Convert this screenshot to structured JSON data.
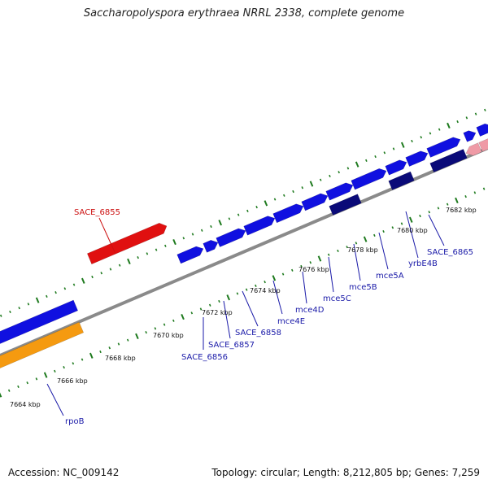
{
  "title": "Saccharopolyspora erythraea NRRL 2338, complete genome",
  "footer": {
    "accession": "Accession: NC_009142",
    "topology": "Topology: circular; Length: 8,212,805 bp; Genes: 7,259"
  },
  "colors": {
    "backbone": "#8a8a8a",
    "tick": "#1e7a1e",
    "forward_gene": "#1010e0",
    "reverse_gene": "#0a0a78",
    "highlight_gene": "#e01010",
    "orange_gene": "#f59a10",
    "pink_gene": "#ef9aa6",
    "label_blue": "#1a1aa8",
    "label_red": "#cc1010"
  },
  "scale_labels": [
    "7664 kbp",
    "7666 kbp",
    "7668 kbp",
    "7670 kbp",
    "7672 kbp",
    "7674 kbp",
    "7676 kbp",
    "7678 kbp",
    "7680 kbp",
    "7682 kbp"
  ],
  "gene_labels": [
    {
      "text": "SACE_6855",
      "color": "red"
    },
    {
      "text": "rpoB",
      "color": "blue"
    },
    {
      "text": "SACE_6856",
      "color": "blue"
    },
    {
      "text": "SACE_6857",
      "color": "blue"
    },
    {
      "text": "SACE_6858",
      "color": "blue"
    },
    {
      "text": "mce4E",
      "color": "blue"
    },
    {
      "text": "mce4D",
      "color": "blue"
    },
    {
      "text": "mce5C",
      "color": "blue"
    },
    {
      "text": "mce5B",
      "color": "blue"
    },
    {
      "text": "mce5A",
      "color": "blue"
    },
    {
      "text": "yrbE4B",
      "color": "blue"
    },
    {
      "text": "SACE_6865",
      "color": "blue"
    }
  ]
}
